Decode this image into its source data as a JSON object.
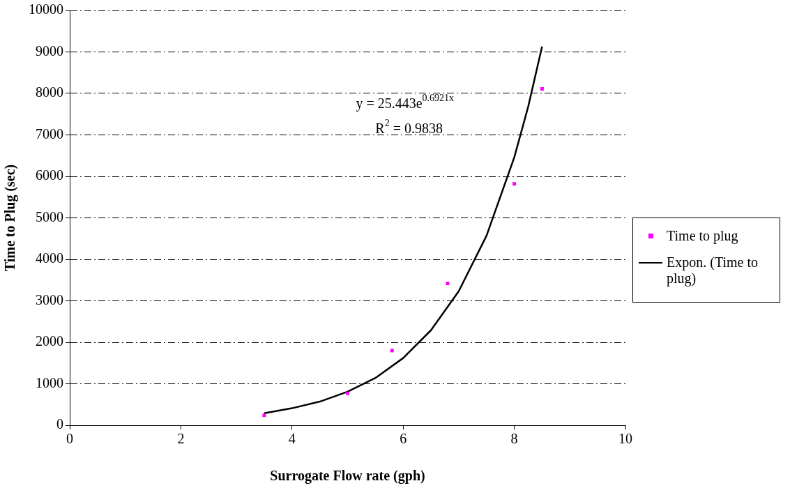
{
  "chart_data": {
    "type": "scatter",
    "xlabel": "Surrogate Flow rate (gph)",
    "ylabel": "Time to Plug (sec)",
    "xlim": [
      0,
      10
    ],
    "xticks": [
      0,
      2,
      4,
      6,
      8,
      10
    ],
    "ylim": [
      0,
      10000
    ],
    "yticks": [
      0,
      1000,
      2000,
      3000,
      4000,
      5000,
      6000,
      7000,
      8000,
      9000,
      10000
    ],
    "grid": "y",
    "legend": "right",
    "marker": "square",
    "series": [
      {
        "name": "Time to plug",
        "color": "#ff00ff",
        "x": [
          3.5,
          5,
          5.8,
          6.8,
          8,
          8.5
        ],
        "values": [
          240,
          770,
          1800,
          3420,
          5820,
          8110
        ]
      },
      {
        "name": "Expon. (Time to plug)",
        "type": "line",
        "marker": "none",
        "line_style": "solid",
        "color": "#000000",
        "x": [
          3.5,
          4,
          4.5,
          5,
          5.5,
          6,
          6.5,
          7,
          7.5,
          8,
          8.25,
          8.5
        ],
        "values": [
          290,
          410,
          570,
          810,
          1140,
          1620,
          2290,
          3230,
          4570,
          6460,
          7680,
          9130
        ]
      }
    ],
    "annotations": [
      "y = 25.443e$^{0.6921x}$",
      "R$^{2}$ = 0.9838"
    ]
  }
}
